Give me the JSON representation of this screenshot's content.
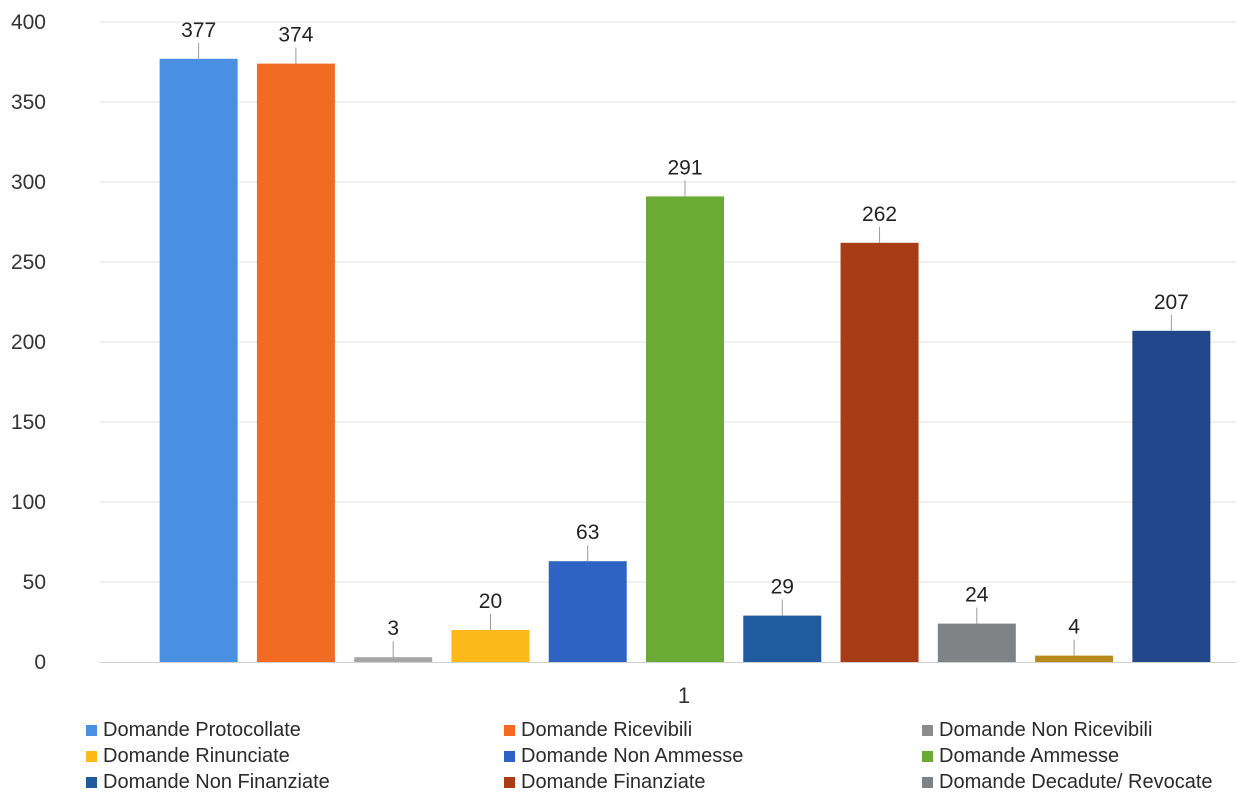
{
  "chart_data": {
    "type": "bar",
    "categories": [
      "1"
    ],
    "ylim": [
      0,
      400
    ],
    "yticks": [
      0,
      50,
      100,
      150,
      200,
      250,
      300,
      350,
      400
    ],
    "grid": true,
    "legend_position": "bottom",
    "series": [
      {
        "name": "Domande Protocollate",
        "value": 377,
        "label": "377",
        "color": "#4a90e2"
      },
      {
        "name": "Domande Ricevibili",
        "value": 374,
        "label": "374",
        "color": "#f26b22"
      },
      {
        "name": "Domande Non Ricevibili",
        "value": 3,
        "label": "3",
        "color": "#a6a6a6"
      },
      {
        "name": "Domande Rinunciate",
        "value": 20,
        "label": "20",
        "color": "#fbb91a"
      },
      {
        "name": "Domande Non Ammesse",
        "value": 63,
        "label": "63",
        "color": "#2f63c3"
      },
      {
        "name": "Domande Ammesse",
        "value": 291,
        "label": "291",
        "color": "#6aab35"
      },
      {
        "name": "Domande Non Finanziate",
        "value": 29,
        "label": "29",
        "color": "#1f5b9e"
      },
      {
        "name": "Domande Finanziate",
        "value": 262,
        "label": "262",
        "color": "#a83c16"
      },
      {
        "name": "Domande Decadute/ Revocate",
        "value": 24,
        "label": "24",
        "color": "#7f8385"
      },
      {
        "name": "Domande Non Ricevibili",
        "value": 4,
        "label": "4",
        "color": "#b88a1c"
      },
      {
        "name": "",
        "value": 207,
        "label": "207",
        "color": "#22478a"
      }
    ],
    "legend": [
      {
        "label": "Domande Protocollate",
        "color": "#4a90e2"
      },
      {
        "label": "Domande Ricevibili",
        "color": "#f26b22"
      },
      {
        "label": "Domande Non Ricevibili",
        "color": "#8c8c8c"
      },
      {
        "label": "Domande Rinunciate",
        "color": "#fbb91a"
      },
      {
        "label": "Domande Non Ammesse",
        "color": "#2f63c3"
      },
      {
        "label": "Domande Ammesse",
        "color": "#6aab35"
      },
      {
        "label": "Domande Non Finanziate",
        "color": "#1f5b9e"
      },
      {
        "label": "Domande Finanziate",
        "color": "#a83c16"
      },
      {
        "label": "Domande Decadute/ Revocate",
        "color": "#7f8385"
      }
    ]
  }
}
